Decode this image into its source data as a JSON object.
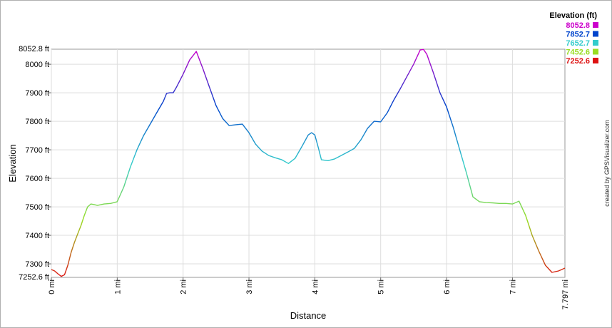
{
  "chart_data": {
    "type": "line",
    "title": "",
    "xlabel": "Distance",
    "ylabel": "Elevation",
    "x_unit": "mi",
    "y_unit": "ft",
    "xlim": [
      0,
      7.797
    ],
    "ylim": [
      7252.6,
      8052.8
    ],
    "x_ticks": [
      0,
      1,
      2,
      3,
      4,
      5,
      6,
      7
    ],
    "x_tick_labels": [
      "0 mi",
      "1 mi",
      "2 mi",
      "3 mi",
      "4 mi",
      "5 mi",
      "6 mi",
      "7 mi"
    ],
    "x_end_label": "7.797 mi",
    "y_ticks": [
      7300,
      7400,
      7500,
      7600,
      7700,
      7800,
      7900,
      8000
    ],
    "y_tick_labels": [
      "7300 ft",
      "7400 ft",
      "7500 ft",
      "7600 ft",
      "7700 ft",
      "7800 ft",
      "7900 ft",
      "8000 ft"
    ],
    "y_min_label": "7252.6 ft",
    "y_max_label": "8052.8 ft",
    "grid": true,
    "legend": {
      "title": "Elevation (ft)",
      "placement": "top-right",
      "entries": [
        {
          "label": "8052.8",
          "color": "#cc00cc"
        },
        {
          "label": "7852.7",
          "color": "#0044cc"
        },
        {
          "label": "7652.7",
          "color": "#33cccc"
        },
        {
          "label": "7452.6",
          "color": "#99dd22"
        },
        {
          "label": "7252.6",
          "color": "#dd1111"
        }
      ]
    },
    "series": [
      {
        "x": [
          0,
          0.05,
          0.1,
          0.15,
          0.2,
          0.25,
          0.3,
          0.35,
          0.4,
          0.45,
          0.5,
          0.55,
          0.6,
          0.65,
          0.7,
          0.8,
          0.9,
          1.0,
          1.1,
          1.2,
          1.3,
          1.4,
          1.5,
          1.6,
          1.7,
          1.75,
          1.8,
          1.85,
          1.9,
          2.0,
          2.1,
          2.2,
          2.3,
          2.4,
          2.5,
          2.6,
          2.7,
          2.8,
          2.9,
          3.0,
          3.1,
          3.2,
          3.3,
          3.4,
          3.5,
          3.6,
          3.7,
          3.8,
          3.9,
          3.95,
          4.0,
          4.05,
          4.1,
          4.2,
          4.3,
          4.4,
          4.5,
          4.6,
          4.7,
          4.8,
          4.9,
          5.0,
          5.1,
          5.2,
          5.3,
          5.4,
          5.5,
          5.6,
          5.65,
          5.7,
          5.8,
          5.9,
          6.0,
          6.1,
          6.2,
          6.3,
          6.4,
          6.5,
          6.6,
          6.7,
          6.8,
          6.9,
          7.0,
          7.1,
          7.2,
          7.3,
          7.4,
          7.5,
          7.6,
          7.7,
          7.797
        ],
        "y": [
          7280,
          7275,
          7265,
          7256,
          7262,
          7295,
          7340,
          7375,
          7405,
          7435,
          7470,
          7500,
          7510,
          7508,
          7505,
          7510,
          7512,
          7518,
          7570,
          7640,
          7700,
          7750,
          7790,
          7830,
          7870,
          7898,
          7900,
          7900,
          7920,
          7965,
          8015,
          8045,
          7985,
          7920,
          7855,
          7810,
          7785,
          7788,
          7790,
          7760,
          7720,
          7695,
          7680,
          7672,
          7665,
          7652,
          7670,
          7710,
          7752,
          7760,
          7752,
          7710,
          7665,
          7662,
          7668,
          7680,
          7692,
          7705,
          7735,
          7775,
          7800,
          7798,
          7830,
          7875,
          7915,
          7958,
          8000,
          8050,
          8052,
          8035,
          7970,
          7900,
          7850,
          7780,
          7700,
          7620,
          7535,
          7518,
          7515,
          7514,
          7512,
          7512,
          7510,
          7520,
          7470,
          7400,
          7345,
          7295,
          7270,
          7275,
          7285
        ]
      }
    ]
  },
  "credit": "created by GPSVisualizer.com"
}
